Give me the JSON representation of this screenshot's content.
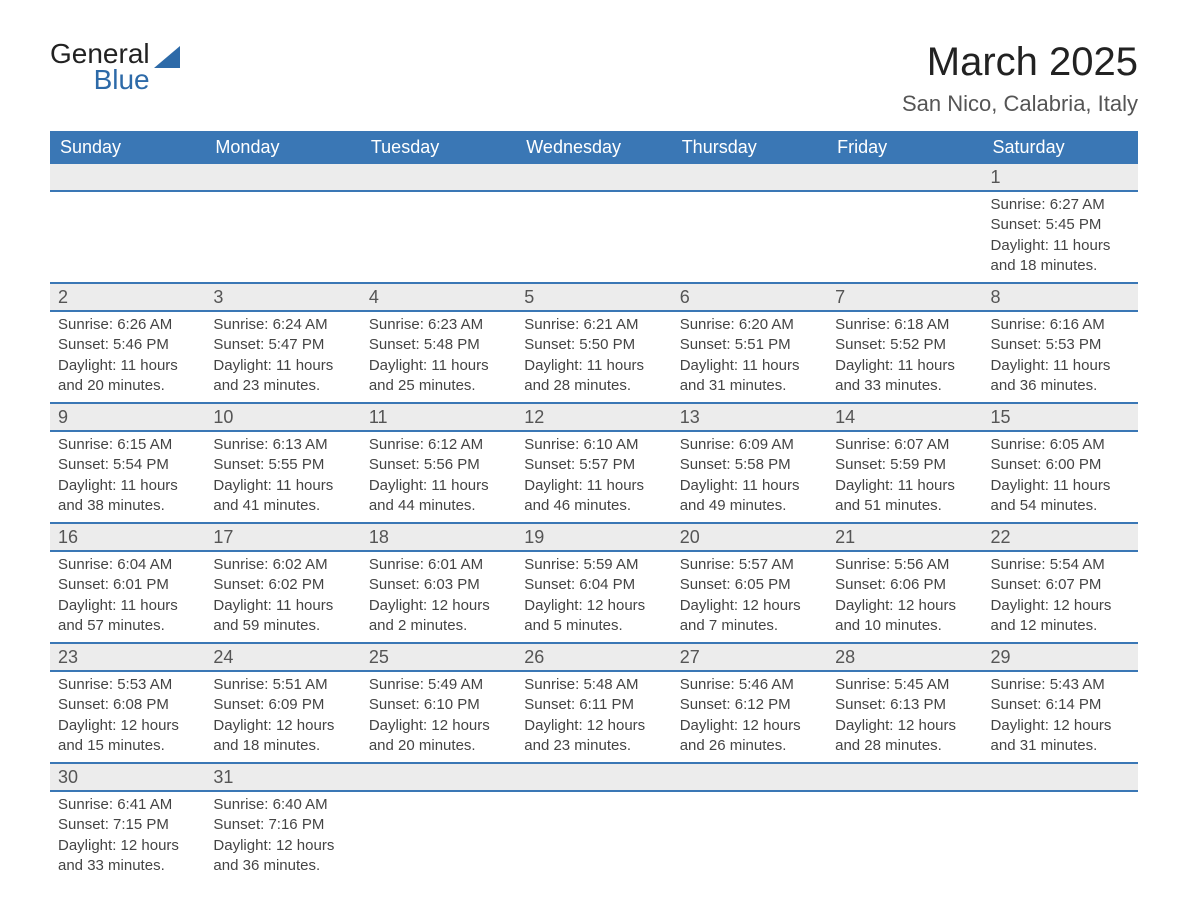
{
  "brand": {
    "word1": "General",
    "word2": "Blue"
  },
  "title": "March 2025",
  "location": "San Nico, Calabria, Italy",
  "colors": {
    "header_bg": "#3a77b5",
    "header_text": "#ffffff",
    "row_divider": "#3a77b5",
    "daynum_bg": "#ececec",
    "body_text": "#444444",
    "brand_blue": "#2d6aa8"
  },
  "weekdays": [
    "Sunday",
    "Monday",
    "Tuesday",
    "Wednesday",
    "Thursday",
    "Friday",
    "Saturday"
  ],
  "weeks": [
    [
      null,
      null,
      null,
      null,
      null,
      null,
      {
        "n": "1",
        "sunrise": "6:27 AM",
        "sunset": "5:45 PM",
        "daylight": "11 hours and 18 minutes."
      }
    ],
    [
      {
        "n": "2",
        "sunrise": "6:26 AM",
        "sunset": "5:46 PM",
        "daylight": "11 hours and 20 minutes."
      },
      {
        "n": "3",
        "sunrise": "6:24 AM",
        "sunset": "5:47 PM",
        "daylight": "11 hours and 23 minutes."
      },
      {
        "n": "4",
        "sunrise": "6:23 AM",
        "sunset": "5:48 PM",
        "daylight": "11 hours and 25 minutes."
      },
      {
        "n": "5",
        "sunrise": "6:21 AM",
        "sunset": "5:50 PM",
        "daylight": "11 hours and 28 minutes."
      },
      {
        "n": "6",
        "sunrise": "6:20 AM",
        "sunset": "5:51 PM",
        "daylight": "11 hours and 31 minutes."
      },
      {
        "n": "7",
        "sunrise": "6:18 AM",
        "sunset": "5:52 PM",
        "daylight": "11 hours and 33 minutes."
      },
      {
        "n": "8",
        "sunrise": "6:16 AM",
        "sunset": "5:53 PM",
        "daylight": "11 hours and 36 minutes."
      }
    ],
    [
      {
        "n": "9",
        "sunrise": "6:15 AM",
        "sunset": "5:54 PM",
        "daylight": "11 hours and 38 minutes."
      },
      {
        "n": "10",
        "sunrise": "6:13 AM",
        "sunset": "5:55 PM",
        "daylight": "11 hours and 41 minutes."
      },
      {
        "n": "11",
        "sunrise": "6:12 AM",
        "sunset": "5:56 PM",
        "daylight": "11 hours and 44 minutes."
      },
      {
        "n": "12",
        "sunrise": "6:10 AM",
        "sunset": "5:57 PM",
        "daylight": "11 hours and 46 minutes."
      },
      {
        "n": "13",
        "sunrise": "6:09 AM",
        "sunset": "5:58 PM",
        "daylight": "11 hours and 49 minutes."
      },
      {
        "n": "14",
        "sunrise": "6:07 AM",
        "sunset": "5:59 PM",
        "daylight": "11 hours and 51 minutes."
      },
      {
        "n": "15",
        "sunrise": "6:05 AM",
        "sunset": "6:00 PM",
        "daylight": "11 hours and 54 minutes."
      }
    ],
    [
      {
        "n": "16",
        "sunrise": "6:04 AM",
        "sunset": "6:01 PM",
        "daylight": "11 hours and 57 minutes."
      },
      {
        "n": "17",
        "sunrise": "6:02 AM",
        "sunset": "6:02 PM",
        "daylight": "11 hours and 59 minutes."
      },
      {
        "n": "18",
        "sunrise": "6:01 AM",
        "sunset": "6:03 PM",
        "daylight": "12 hours and 2 minutes."
      },
      {
        "n": "19",
        "sunrise": "5:59 AM",
        "sunset": "6:04 PM",
        "daylight": "12 hours and 5 minutes."
      },
      {
        "n": "20",
        "sunrise": "5:57 AM",
        "sunset": "6:05 PM",
        "daylight": "12 hours and 7 minutes."
      },
      {
        "n": "21",
        "sunrise": "5:56 AM",
        "sunset": "6:06 PM",
        "daylight": "12 hours and 10 minutes."
      },
      {
        "n": "22",
        "sunrise": "5:54 AM",
        "sunset": "6:07 PM",
        "daylight": "12 hours and 12 minutes."
      }
    ],
    [
      {
        "n": "23",
        "sunrise": "5:53 AM",
        "sunset": "6:08 PM",
        "daylight": "12 hours and 15 minutes."
      },
      {
        "n": "24",
        "sunrise": "5:51 AM",
        "sunset": "6:09 PM",
        "daylight": "12 hours and 18 minutes."
      },
      {
        "n": "25",
        "sunrise": "5:49 AM",
        "sunset": "6:10 PM",
        "daylight": "12 hours and 20 minutes."
      },
      {
        "n": "26",
        "sunrise": "5:48 AM",
        "sunset": "6:11 PM",
        "daylight": "12 hours and 23 minutes."
      },
      {
        "n": "27",
        "sunrise": "5:46 AM",
        "sunset": "6:12 PM",
        "daylight": "12 hours and 26 minutes."
      },
      {
        "n": "28",
        "sunrise": "5:45 AM",
        "sunset": "6:13 PM",
        "daylight": "12 hours and 28 minutes."
      },
      {
        "n": "29",
        "sunrise": "5:43 AM",
        "sunset": "6:14 PM",
        "daylight": "12 hours and 31 minutes."
      }
    ],
    [
      {
        "n": "30",
        "sunrise": "6:41 AM",
        "sunset": "7:15 PM",
        "daylight": "12 hours and 33 minutes."
      },
      {
        "n": "31",
        "sunrise": "6:40 AM",
        "sunset": "7:16 PM",
        "daylight": "12 hours and 36 minutes."
      },
      null,
      null,
      null,
      null,
      null
    ]
  ],
  "labels": {
    "sunrise": "Sunrise:",
    "sunset": "Sunset:",
    "daylight": "Daylight:"
  }
}
